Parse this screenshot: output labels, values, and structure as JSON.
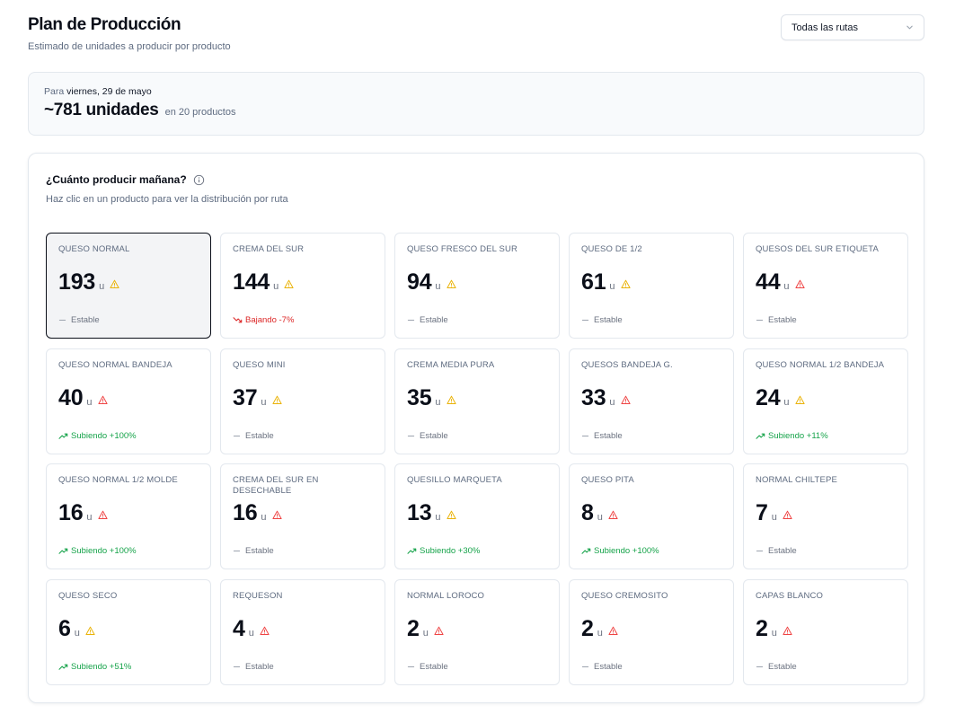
{
  "header": {
    "title": "Plan de Producción",
    "subtitle": "Estimado de unidades a producir por producto"
  },
  "route_select": {
    "value": "Todas las rutas"
  },
  "summary": {
    "prefix": "Para",
    "date": "viernes, 29 de mayo",
    "total": "~781 unidades",
    "products": "en 20 productos"
  },
  "panel": {
    "title": "¿Cuánto producir mañana?",
    "subtitle": "Haz clic en un producto para ver la distribución por ruta"
  },
  "colors": {
    "warn_yellow": "#eab308",
    "warn_red": "#ef4444",
    "trend_up": "#16a34a",
    "trend_down": "#dc2626",
    "selected_border": "#0b0f19"
  },
  "products": [
    {
      "name": "QUESO NORMAL",
      "qty": "193",
      "unit": "u",
      "warn": "yellow",
      "trend": "Estable",
      "dir": "flat",
      "selected": true
    },
    {
      "name": "CREMA DEL SUR",
      "qty": "144",
      "unit": "u",
      "warn": "yellow",
      "trend": "Bajando -7%",
      "dir": "down"
    },
    {
      "name": "QUESO FRESCO DEL SUR",
      "qty": "94",
      "unit": "u",
      "warn": "yellow",
      "trend": "Estable",
      "dir": "flat"
    },
    {
      "name": "QUESO DE 1/2",
      "qty": "61",
      "unit": "u",
      "warn": "yellow",
      "trend": "Estable",
      "dir": "flat"
    },
    {
      "name": "QUESOS DEL SUR ETIQUETA",
      "qty": "44",
      "unit": "u",
      "warn": "red",
      "trend": "Estable",
      "dir": "flat"
    },
    {
      "name": "QUESO NORMAL BANDEJA",
      "qty": "40",
      "unit": "u",
      "warn": "red",
      "trend": "Subiendo +100%",
      "dir": "up"
    },
    {
      "name": "QUESO MINI",
      "qty": "37",
      "unit": "u",
      "warn": "yellow",
      "trend": "Estable",
      "dir": "flat"
    },
    {
      "name": "CREMA MEDIA PURA",
      "qty": "35",
      "unit": "u",
      "warn": "yellow",
      "trend": "Estable",
      "dir": "flat"
    },
    {
      "name": "QUESOS BANDEJA G.",
      "qty": "33",
      "unit": "u",
      "warn": "red",
      "trend": "Estable",
      "dir": "flat"
    },
    {
      "name": "QUESO NORMAL 1/2 BANDEJA",
      "qty": "24",
      "unit": "u",
      "warn": "yellow",
      "trend": "Subiendo +11%",
      "dir": "up"
    },
    {
      "name": "QUESO NORMAL 1/2 MOLDE",
      "qty": "16",
      "unit": "u",
      "warn": "red",
      "trend": "Subiendo +100%",
      "dir": "up"
    },
    {
      "name": "CREMA DEL SUR EN DESECHABLE",
      "qty": "16",
      "unit": "u",
      "warn": "red",
      "trend": "Estable",
      "dir": "flat"
    },
    {
      "name": "QUESILLO MARQUETA",
      "qty": "13",
      "unit": "u",
      "warn": "yellow",
      "trend": "Subiendo +30%",
      "dir": "up"
    },
    {
      "name": "QUESO PITA",
      "qty": "8",
      "unit": "u",
      "warn": "red",
      "trend": "Subiendo +100%",
      "dir": "up"
    },
    {
      "name": "NORMAL CHILTEPE",
      "qty": "7",
      "unit": "u",
      "warn": "red",
      "trend": "Estable",
      "dir": "flat"
    },
    {
      "name": "QUESO SECO",
      "qty": "6",
      "unit": "u",
      "warn": "yellow",
      "trend": "Subiendo +51%",
      "dir": "up"
    },
    {
      "name": "REQUESON",
      "qty": "4",
      "unit": "u",
      "warn": "red",
      "trend": "Estable",
      "dir": "flat"
    },
    {
      "name": "NORMAL LOROCO",
      "qty": "2",
      "unit": "u",
      "warn": "red",
      "trend": "Estable",
      "dir": "flat"
    },
    {
      "name": "QUESO CREMOSITO",
      "qty": "2",
      "unit": "u",
      "warn": "red",
      "trend": "Estable",
      "dir": "flat"
    },
    {
      "name": "CAPAS BLANCO",
      "qty": "2",
      "unit": "u",
      "warn": "red",
      "trend": "Estable",
      "dir": "flat"
    }
  ]
}
